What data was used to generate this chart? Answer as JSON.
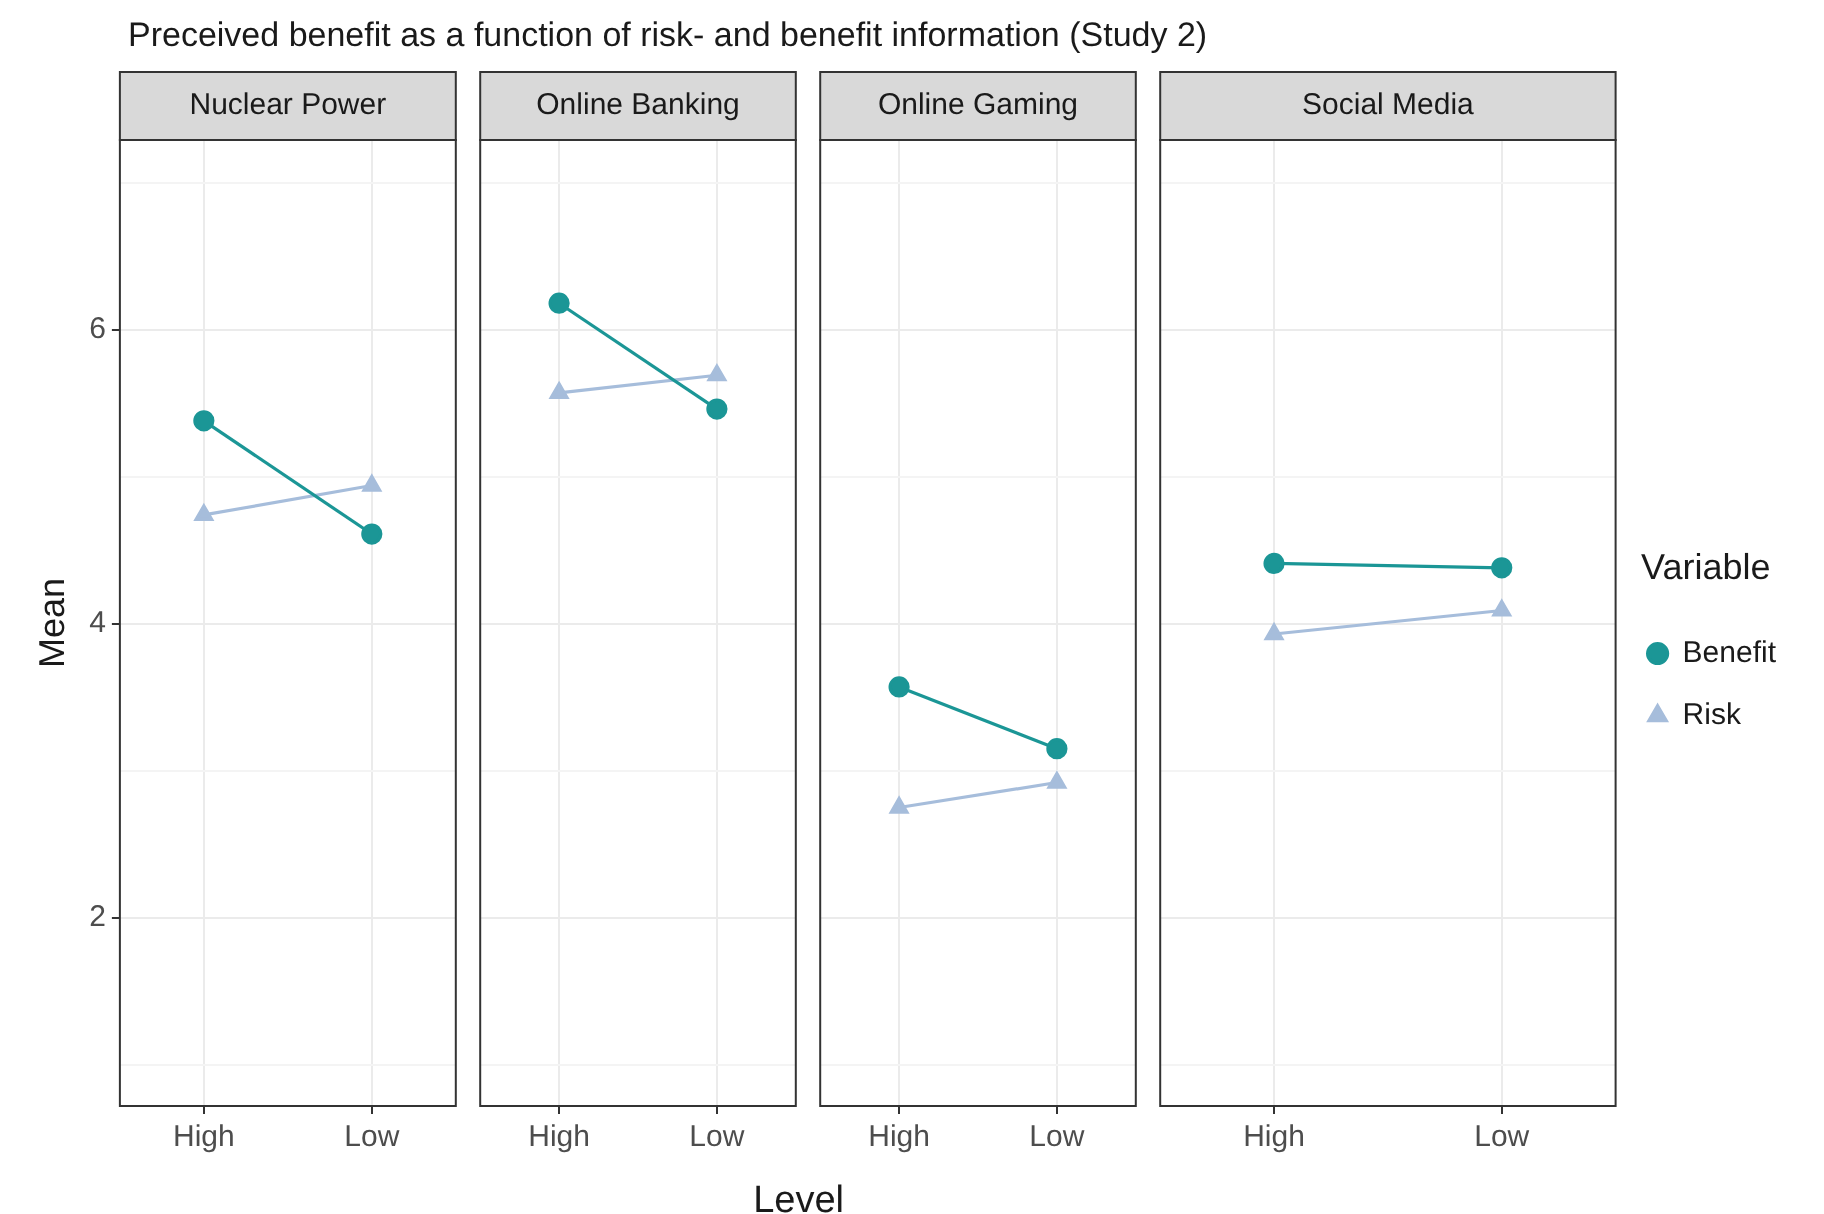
{
  "chart_data": [
    {
      "type": "line",
      "title": "Nuclear Power",
      "annotations": [
        "Preceived benefit as a function of risk- and benefit information (Study 2)"
      ],
      "ylabel": "Mean",
      "categories": [
        "High",
        "Low"
      ],
      "ylim": [
        0.72,
        7.29
      ],
      "yticks": [
        {
          "value": 1,
          "label": null
        },
        2,
        {
          "value": 3,
          "label": null
        },
        4,
        {
          "value": 5,
          "label": null
        },
        6,
        {
          "value": 7,
          "label": null
        }
      ],
      "grid": true,
      "line_style": "solid",
      "series": [
        {
          "color": "#1b9696",
          "marker": "circle",
          "values": [
            5.38,
            4.61
          ]
        },
        {
          "color": "#a6bddb",
          "marker": "triangle",
          "values": [
            4.74,
            4.94
          ]
        }
      ]
    },
    {
      "type": "line",
      "title": "Online Banking",
      "xlabel": "Level",
      "categories": [
        "High",
        "Low"
      ],
      "ylim": [
        0.72,
        7.29
      ],
      "yticks": [
        {
          "value": 1,
          "label": null
        },
        2,
        {
          "value": 3,
          "label": null
        },
        4,
        {
          "value": 5,
          "label": null
        },
        6,
        {
          "value": 7,
          "label": null
        }
      ],
      "grid": true,
      "tick_labels": "x",
      "line_style": "solid",
      "series": [
        {
          "color": "#1b9696",
          "marker": "circle",
          "values": [
            6.18,
            5.46
          ]
        },
        {
          "color": "#a6bddb",
          "marker": "triangle",
          "values": [
            5.57,
            5.69
          ]
        }
      ]
    },
    {
      "type": "line",
      "title": "Online Gaming",
      "categories": [
        "High",
        "Low"
      ],
      "ylim": [
        0.72,
        7.29
      ],
      "yticks": [
        {
          "value": 1,
          "label": null
        },
        2,
        {
          "value": 3,
          "label": null
        },
        4,
        {
          "value": 5,
          "label": null
        },
        6,
        {
          "value": 7,
          "label": null
        }
      ],
      "grid": true,
      "tick_labels": "x",
      "line_style": "solid",
      "series": [
        {
          "color": "#1b9696",
          "marker": "circle",
          "values": [
            3.57,
            3.15
          ]
        },
        {
          "color": "#a6bddb",
          "marker": "triangle",
          "values": [
            2.75,
            2.92
          ]
        }
      ]
    },
    {
      "type": "line",
      "title": "Social Media",
      "legend_title": "Variable",
      "legend": "right",
      "categories": [
        "High",
        "Low"
      ],
      "ylim": [
        0.72,
        7.29
      ],
      "yticks": [
        {
          "value": 1,
          "label": null
        },
        2,
        {
          "value": 3,
          "label": null
        },
        4,
        {
          "value": 5,
          "label": null
        },
        6,
        {
          "value": 7,
          "label": null
        }
      ],
      "grid": true,
      "tick_labels": "x",
      "line_style": "solid",
      "series": [
        {
          "name": "Benefit",
          "color": "#1b9696",
          "marker": "circle",
          "values": [
            4.41,
            4.38
          ]
        },
        {
          "name": "Risk",
          "color": "#a6bddb",
          "marker": "triangle",
          "values": [
            3.93,
            4.09
          ]
        }
      ]
    }
  ]
}
